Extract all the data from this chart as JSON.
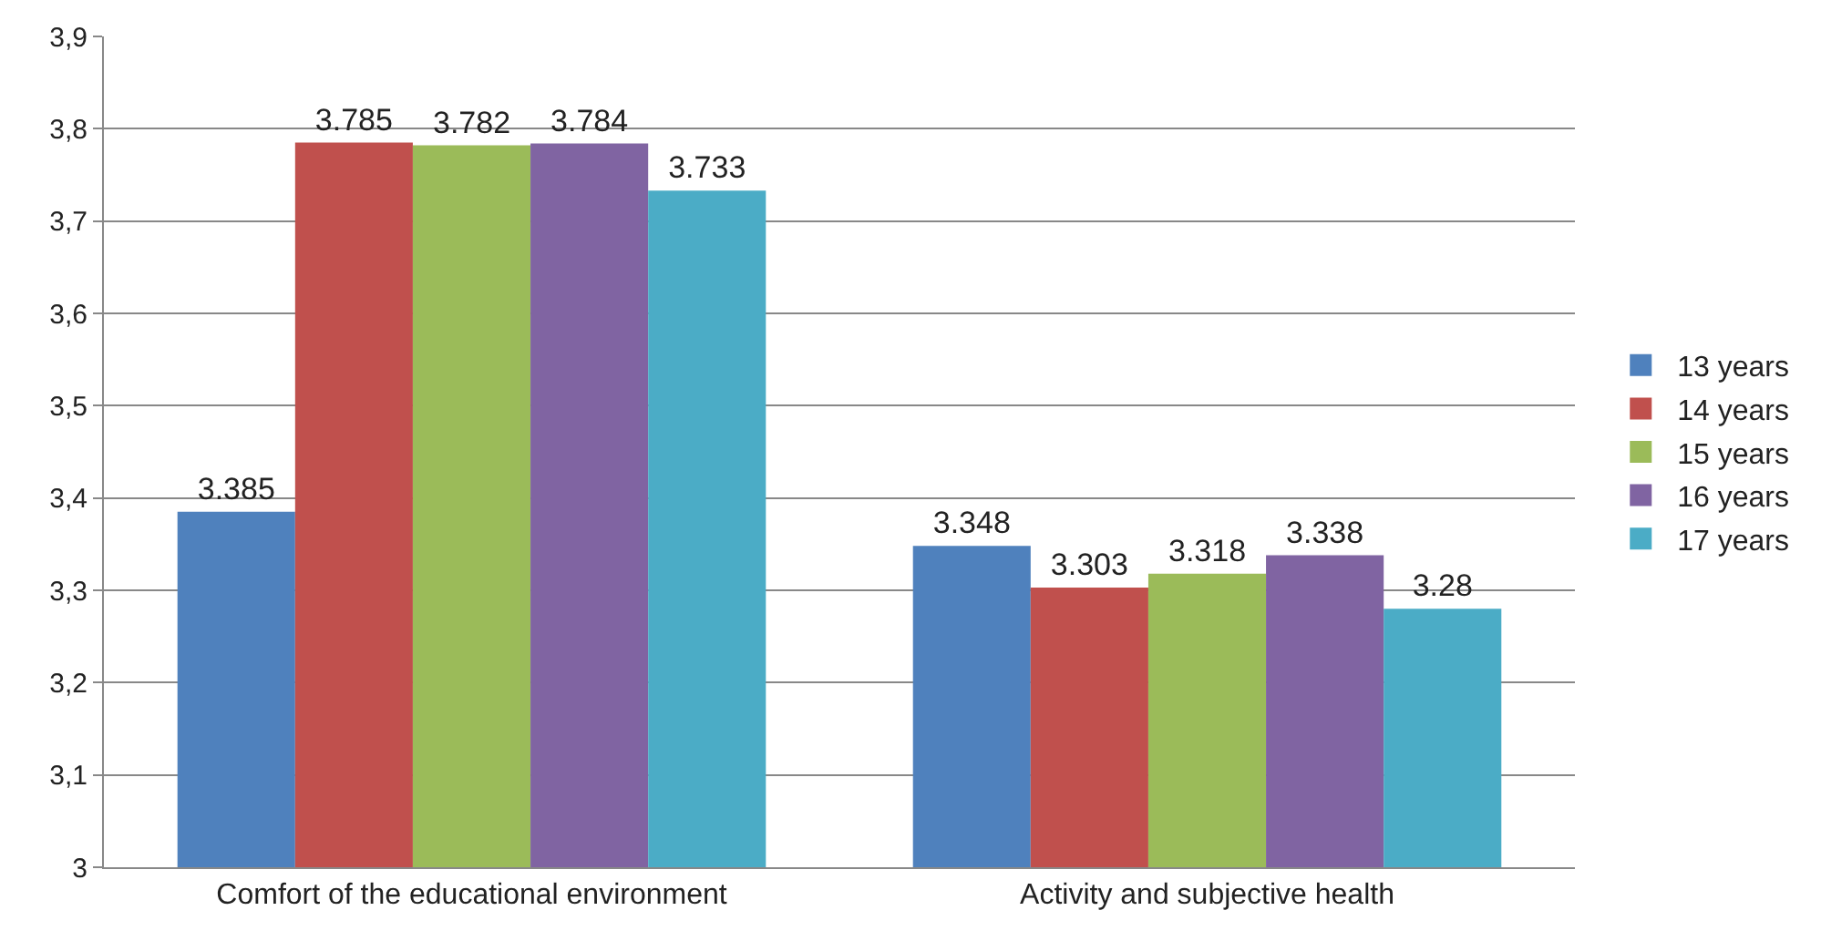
{
  "chart_data": {
    "type": "bar",
    "categories": [
      "Comfort of the educational environment",
      "Activity and subjective health"
    ],
    "series": [
      {
        "name": "13 years",
        "color": "#4f81bd",
        "values": [
          3.385,
          3.348
        ]
      },
      {
        "name": "14 years",
        "color": "#c0504d",
        "values": [
          3.785,
          3.303
        ]
      },
      {
        "name": "15 years",
        "color": "#9bbb59",
        "values": [
          3.782,
          3.318
        ]
      },
      {
        "name": "16 years",
        "color": "#8064a2",
        "values": [
          3.784,
          3.338
        ]
      },
      {
        "name": "17 years",
        "color": "#4bacc6",
        "values": [
          3.733,
          3.28
        ]
      }
    ],
    "ylim": [
      3,
      3.9
    ],
    "yticks": [
      3,
      {
        "value": 3.1,
        "label": "3,1"
      },
      {
        "value": 3.2,
        "label": "3,2"
      },
      {
        "value": 3.3,
        "label": "3,3"
      },
      {
        "value": 3.4,
        "label": "3,4"
      },
      {
        "value": 3.5,
        "label": "3,5"
      },
      {
        "value": 3.6,
        "label": "3,6"
      },
      {
        "value": 3.7,
        "label": "3,7"
      },
      {
        "value": 3.8,
        "label": "3,8"
      },
      {
        "value": 3.9,
        "label": "3,9"
      }
    ],
    "grid": "y",
    "legend": "right",
    "data_labels": true
  }
}
